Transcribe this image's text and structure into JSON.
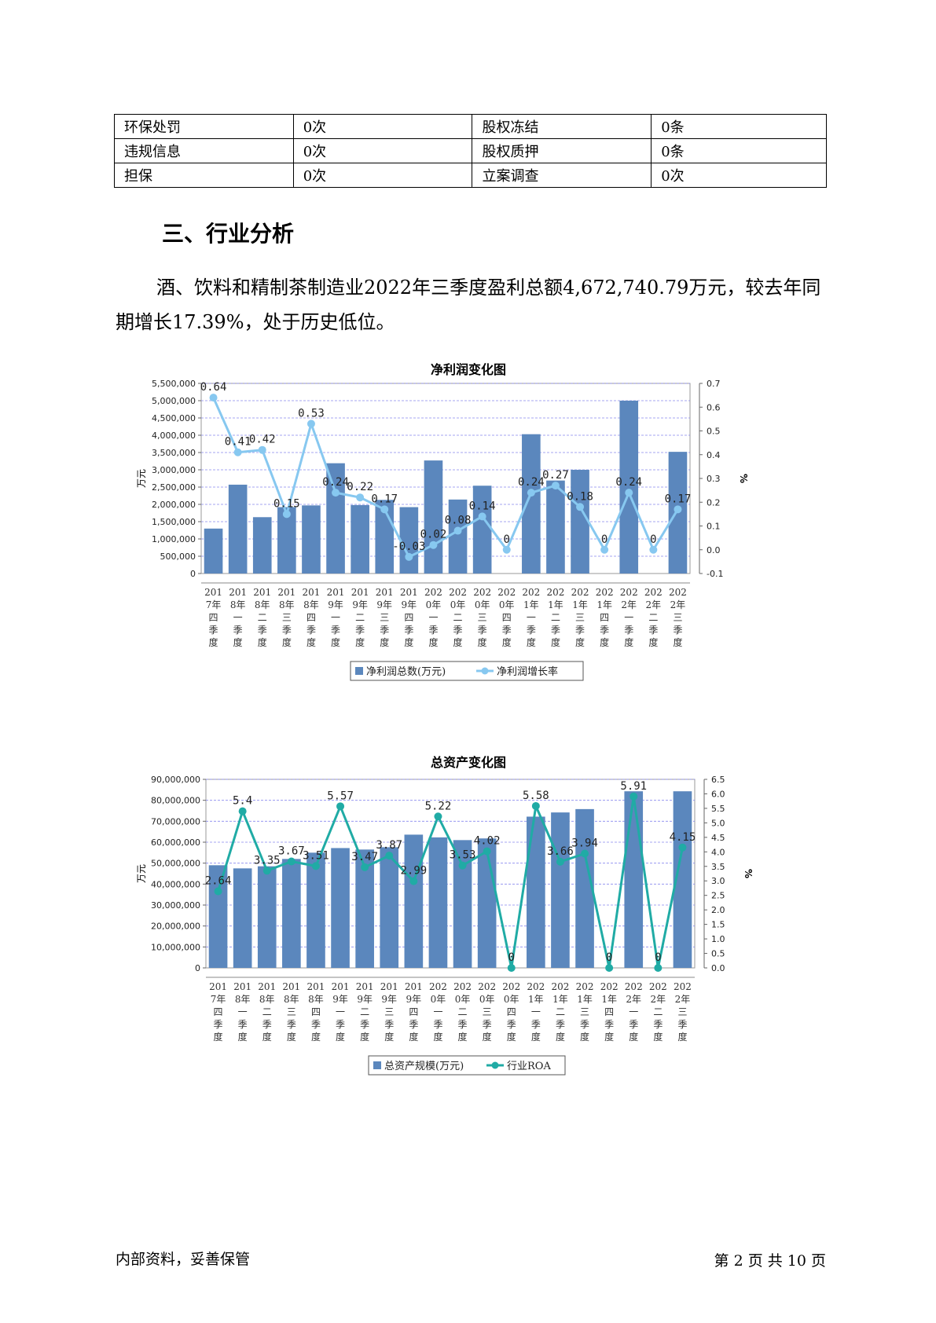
{
  "risk_table": [
    [
      {
        "label": "环保处罚",
        "value": "0次"
      },
      {
        "label": "股权冻结",
        "value": "0条"
      }
    ],
    [
      {
        "label": "违规信息",
        "value": "0次"
      },
      {
        "label": "股权质押",
        "value": "0条"
      }
    ],
    [
      {
        "label": "担保",
        "value": "0次"
      },
      {
        "label": "立案调查",
        "value": "0次"
      }
    ]
  ],
  "section": {
    "heading": "三、行业分析",
    "paragraph": "酒、饮料和精制茶制造业2022年三季度盈利总额4,672,740.79万元，较去年同期增长17.39%，处于历史低位。"
  },
  "colors": {
    "bar": "#5b87bd",
    "line1": "#87c8f0",
    "line2": "#20aba5",
    "grid": "#8888ee"
  },
  "chart_data": [
    {
      "type": "bar+line",
      "title": "净利润变化图",
      "ylabel": "万元",
      "y2label": "%",
      "categories": [
        "2017年四季度",
        "2018年一季度",
        "2018年二季度",
        "2018年三季度",
        "2018年四季度",
        "2019年一季度",
        "2019年二季度",
        "2019年三季度",
        "2019年四季度",
        "2020年一季度",
        "2020年二季度",
        "2020年三季度",
        "2020年四季度",
        "2021年一季度",
        "2021年二季度",
        "2021年三季度",
        "2021年四季度",
        "2022年一季度",
        "2022年二季度",
        "2022年三季度"
      ],
      "ylim": [
        0,
        5500000
      ],
      "yticks": [
        0,
        500000,
        1000000,
        1500000,
        2000000,
        2500000,
        3000000,
        3500000,
        4000000,
        4500000,
        5000000,
        5500000
      ],
      "y2lim": [
        -0.1,
        0.7
      ],
      "y2ticks": [
        -0.1,
        0,
        0.1,
        0.2,
        0.3,
        0.4,
        0.5,
        0.6,
        0.7
      ],
      "y2decimals": 1,
      "series": [
        {
          "name": "净利润总数(万元)",
          "kind": "bar",
          "axis": "left",
          "values": [
            1300000,
            2570000,
            1630000,
            1920000,
            1970000,
            3190000,
            1980000,
            2130000,
            1920000,
            3270000,
            2140000,
            2540000,
            0,
            4030000,
            2690000,
            3000000,
            0,
            5000000,
            0,
            3520000
          ]
        },
        {
          "name": "净利润增长率",
          "kind": "line",
          "axis": "right",
          "values": [
            0.64,
            0.41,
            0.42,
            0.15,
            0.53,
            0.24,
            0.22,
            0.17,
            -0.03,
            0.02,
            0.08,
            0.14,
            0,
            0.24,
            0.27,
            0.18,
            0,
            0.24,
            0,
            0.17
          ],
          "labels": [
            "0.64",
            "0.41",
            "0.42",
            "0.15",
            "0.53",
            "0.24",
            "0.22",
            "0.17",
            "-0.03",
            "0.02",
            "0.08",
            "0.14",
            "0",
            "0.24",
            "0.27",
            "0.18",
            "0",
            "0.24",
            "0",
            "0.17"
          ]
        }
      ],
      "legend": "bottom"
    },
    {
      "type": "bar+line",
      "title": "总资产变化图",
      "ylabel": "万元",
      "y2label": "%",
      "categories": [
        "2017年四季度",
        "2018年一季度",
        "2018年二季度",
        "2018年三季度",
        "2018年四季度",
        "2019年一季度",
        "2019年二季度",
        "2019年三季度",
        "2019年四季度",
        "2020年一季度",
        "2020年二季度",
        "2020年三季度",
        "2020年四季度",
        "2021年一季度",
        "2021年二季度",
        "2021年三季度",
        "2021年四季度",
        "2022年一季度",
        "2022年二季度",
        "2022年三季度"
      ],
      "ylim": [
        0,
        90000000
      ],
      "yticks": [
        0,
        10000000,
        20000000,
        30000000,
        40000000,
        50000000,
        60000000,
        70000000,
        80000000,
        90000000
      ],
      "y2lim": [
        0,
        6.5
      ],
      "y2ticks": [
        0,
        0.5,
        1,
        1.5,
        2,
        2.5,
        3,
        3.5,
        4,
        4.5,
        5,
        5.5,
        6,
        6.5
      ],
      "y2decimals": 1,
      "series": [
        {
          "name": "总资产规模(万元)",
          "kind": "bar",
          "axis": "left",
          "values": [
            49000000,
            47500000,
            48500000,
            52000000,
            55000000,
            57200000,
            56500000,
            57600000,
            63600000,
            62300000,
            61000000,
            61800000,
            0,
            72200000,
            74200000,
            75800000,
            0,
            84300000,
            0,
            84300000
          ]
        },
        {
          "name": "行业ROA",
          "kind": "line",
          "axis": "right",
          "values": [
            2.64,
            5.4,
            3.35,
            3.67,
            3.51,
            5.57,
            3.47,
            3.87,
            2.99,
            5.22,
            3.53,
            4.02,
            0,
            5.58,
            3.66,
            3.94,
            0,
            5.91,
            0,
            4.15
          ],
          "labels": [
            "2.64",
            "5.4",
            "3.35",
            "3.67",
            "3.51",
            "5.57",
            "3.47",
            "3.87",
            "2.99",
            "5.22",
            "3.53",
            "4.02",
            "0",
            "5.58",
            "3.66",
            "3.94",
            "0",
            "5.91",
            "0",
            "4.15"
          ]
        }
      ],
      "legend": "bottom"
    }
  ],
  "footer": {
    "left": "内部资料，妥善保管",
    "right": "第 2 页  共 10 页"
  }
}
